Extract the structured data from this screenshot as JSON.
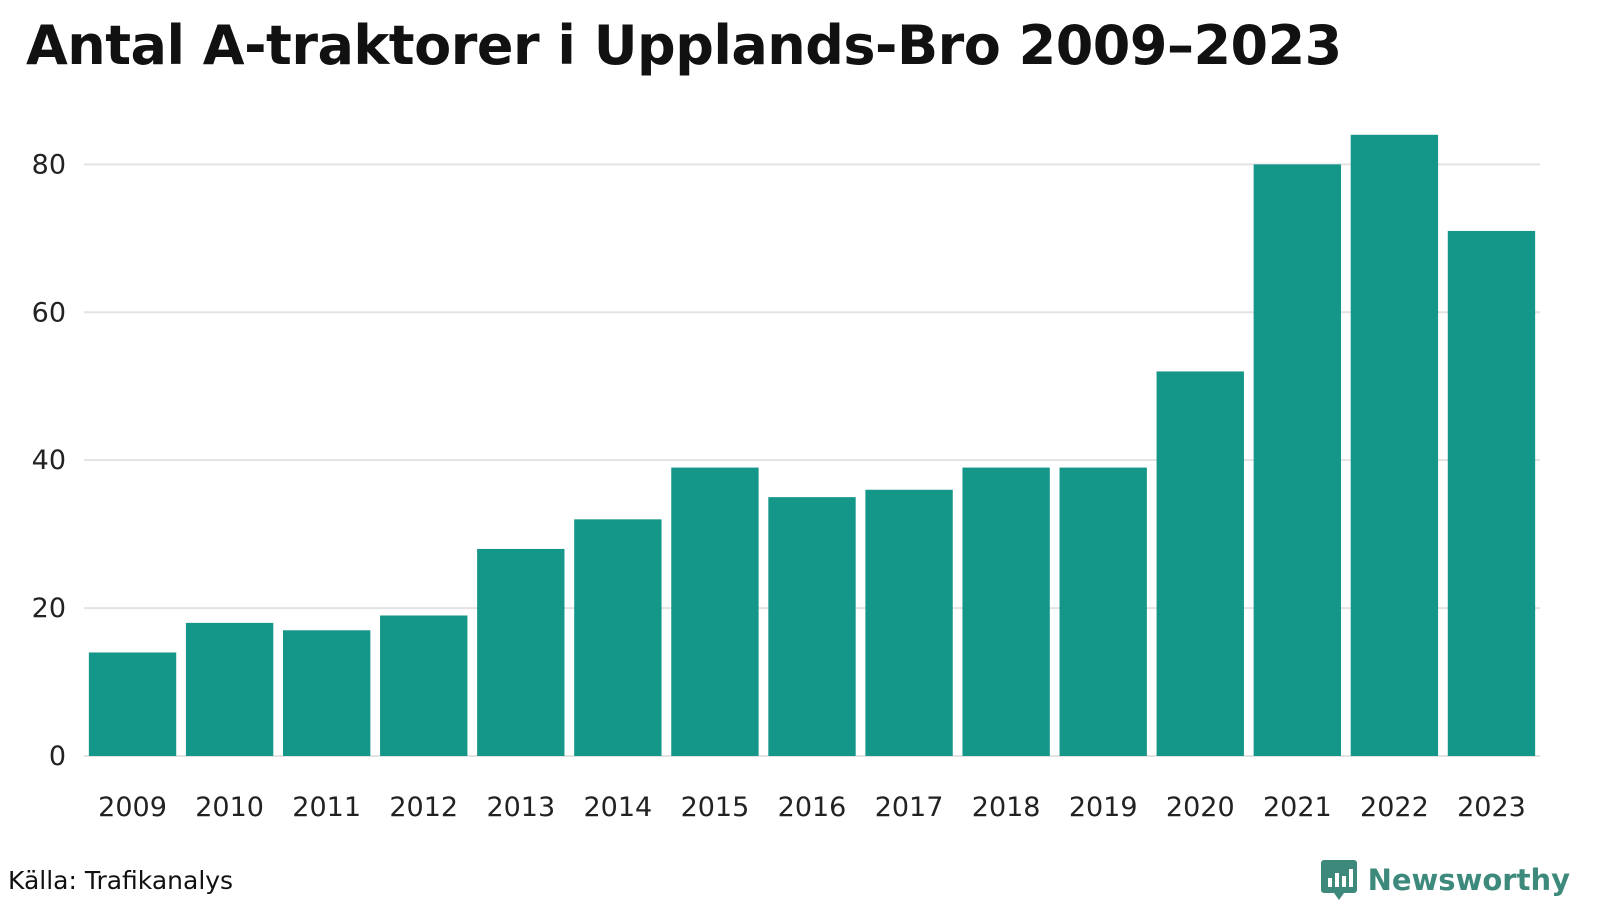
{
  "title": "Antal A-traktorer i Upplands-Bro 2009–2023",
  "source": "Källa: Trafikanalys",
  "brand": {
    "name": "Newsworthy",
    "logo_icon": "bar-chart-logo-icon",
    "color": "#3d8a7c"
  },
  "colors": {
    "bar": "#149688",
    "grid": "#e3e3e3",
    "text": "#222222"
  },
  "chart_data": {
    "type": "bar",
    "title": "Antal A-traktorer i Upplands-Bro 2009–2023",
    "xlabel": "",
    "ylabel": "",
    "categories": [
      "2009",
      "2010",
      "2011",
      "2012",
      "2013",
      "2014",
      "2015",
      "2016",
      "2017",
      "2018",
      "2019",
      "2020",
      "2021",
      "2022",
      "2023"
    ],
    "values": [
      14,
      18,
      17,
      19,
      28,
      32,
      39,
      35,
      36,
      39,
      39,
      52,
      80,
      84,
      71
    ],
    "ylim": [
      0,
      86
    ],
    "yticks": [
      0,
      20,
      40,
      60,
      80
    ],
    "grid": true,
    "legend": "none"
  }
}
